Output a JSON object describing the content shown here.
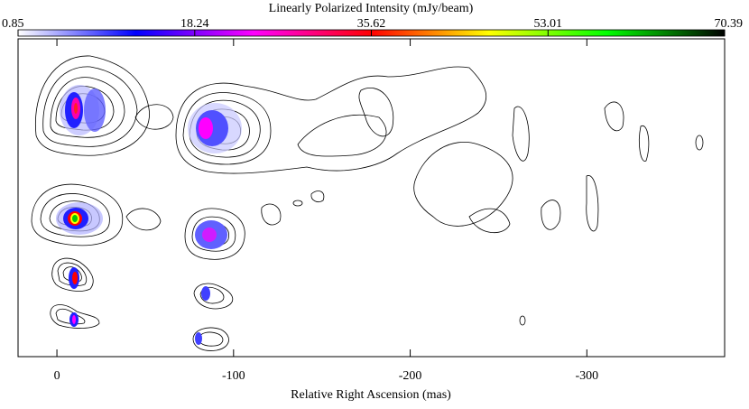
{
  "chart_data": {
    "type": "contour",
    "colorbar": {
      "title": "Linearly Polarized Intensity (mJy/beam)",
      "lim": [
        0.85,
        70.39
      ],
      "ticks": [
        0.85,
        18.24,
        35.62,
        53.01,
        70.39
      ],
      "colors": [
        "#ffffff",
        "#0000ff",
        "#ff00ff",
        "#ff0000",
        "#ffff00",
        "#00ff00",
        "#000000"
      ]
    },
    "xlabel": "Relative Right Ascension (mas)",
    "xlim": [
      22,
      -378
    ],
    "xticks": [
      0,
      -100,
      -200,
      -300
    ]
  }
}
